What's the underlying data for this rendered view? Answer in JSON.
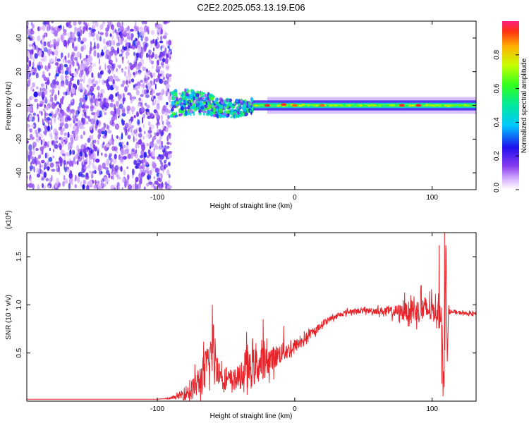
{
  "title": "C2E2.2025.053.13.19.E06",
  "colors": {
    "snr_line": "#e8242a",
    "spectrogram_weak": "#9a5ce6",
    "spectrogram_strong": "#5a00d8",
    "frame": "#000000"
  },
  "chart_data": [
    {
      "type": "heatmap",
      "title": "",
      "xlabel": "Height of straight line (km)",
      "ylabel": "Frequency (Hz)",
      "xlim": [
        -195,
        132
      ],
      "ylim": [
        -50,
        50
      ],
      "x_ticks": [
        "-100",
        "0",
        "100"
      ],
      "x_tick_values": [
        -100,
        0,
        100
      ],
      "y_ticks": [
        "-40",
        "-20",
        "0",
        "20",
        "40"
      ],
      "y_tick_values": [
        -40,
        -20,
        0,
        20,
        40
      ],
      "grid": false,
      "colorbar": {
        "label": "Normalized spectral amplitude",
        "range": [
          0,
          1
        ],
        "ticks": [
          "0.0",
          "0.2",
          "0.4",
          "0.6",
          "0.8"
        ],
        "tick_values": [
          0.0,
          0.2,
          0.4,
          0.6,
          0.8
        ],
        "colormap": "rainbow (magenta-blue-cyan-green-yellow-red)"
      },
      "regions": [
        {
          "x_range": [
            -195,
            -90
          ],
          "frequency_range": [
            -50,
            50
          ],
          "amplitude": 0.15,
          "texture": "random speckle"
        },
        {
          "x_range": [
            -90,
            -30
          ],
          "frequency_range": [
            -8,
            8
          ],
          "amplitude": 0.45,
          "texture": "scattered band"
        },
        {
          "x_range": [
            -30,
            132
          ],
          "frequency_range": [
            -3,
            3
          ],
          "amplitude": 0.7,
          "texture": "narrow band around 0 Hz"
        }
      ],
      "peaks": [
        {
          "x": -20,
          "frequency": 0,
          "amplitude": 0.95
        },
        {
          "x": -8,
          "frequency": 0.5,
          "amplitude": 0.95
        },
        {
          "x": 0,
          "frequency": 0,
          "amplitude": 0.9
        },
        {
          "x": 20,
          "frequency": 0,
          "amplitude": 0.9
        },
        {
          "x": 78,
          "frequency": 0,
          "amplitude": 0.95
        },
        {
          "x": 90,
          "frequency": 0,
          "amplitude": 0.95
        }
      ]
    },
    {
      "type": "line",
      "title": "",
      "xlabel": "Height of straight line (km)",
      "ylabel": "SNR (10 * v/v)",
      "y_multiplier": "(x10^4)",
      "xlim": [
        -195,
        132
      ],
      "ylim": [
        0,
        1.75
      ],
      "x_ticks": [
        "-100",
        "0",
        "100"
      ],
      "x_tick_values": [
        -100,
        0,
        100
      ],
      "y_ticks": [
        "0.5",
        "1.0",
        "1.5"
      ],
      "y_tick_values": [
        0.5,
        1.0,
        1.5
      ],
      "grid": false,
      "series": [
        {
          "x": [
            -195,
            -180,
            -160,
            -140,
            -120,
            -100,
            -90,
            -85,
            -80,
            -75,
            -70,
            -65,
            -62,
            -60,
            -58,
            -55,
            -50,
            -45,
            -40,
            -35,
            -30,
            -25,
            -20,
            -15,
            -10,
            -5,
            0,
            5,
            10,
            15,
            20,
            25,
            30,
            35,
            40,
            50,
            60,
            70,
            80,
            90,
            95,
            100,
            105,
            107,
            108,
            109,
            110,
            111,
            112,
            115,
            120,
            125,
            132
          ],
          "y": [
            0.02,
            0.02,
            0.02,
            0.02,
            0.02,
            0.02,
            0.03,
            0.05,
            0.08,
            0.12,
            0.2,
            0.3,
            0.45,
            0.5,
            0.42,
            0.3,
            0.22,
            0.22,
            0.25,
            0.3,
            0.35,
            0.38,
            0.42,
            0.45,
            0.5,
            0.52,
            0.57,
            0.62,
            0.68,
            0.73,
            0.8,
            0.85,
            0.88,
            0.91,
            0.93,
            0.94,
            0.94,
            0.93,
            0.93,
            0.94,
            0.95,
            0.94,
            0.93,
            0.9,
            0.35,
            0.1,
            1.75,
            0.4,
            0.95,
            0.92,
            0.92,
            0.91,
            0.91
          ],
          "noise": [
            0,
            0,
            0,
            0,
            0,
            0,
            0.01,
            0.03,
            0.08,
            0.12,
            0.18,
            0.25,
            0.25,
            0.25,
            0.22,
            0.15,
            0.12,
            0.12,
            0.14,
            0.18,
            0.22,
            0.2,
            0.16,
            0.14,
            0.12,
            0.1,
            0.08,
            0.06,
            0.05,
            0.04,
            0.04,
            0.03,
            0.03,
            0.03,
            0.03,
            0.03,
            0.04,
            0.06,
            0.1,
            0.14,
            0.16,
            0.14,
            0.12,
            0.1,
            0,
            0,
            0,
            0,
            0.03,
            0.02,
            0.02,
            0.02,
            0.02
          ],
          "spikes": [
            {
              "x": -60,
              "y": 1.0
            },
            {
              "x": -58,
              "y": 0.65
            },
            {
              "x": -35,
              "y": 0.72
            },
            {
              "x": -23,
              "y": 0.85
            },
            {
              "x": -8,
              "y": 0.78
            },
            {
              "x": 80,
              "y": 1.13
            },
            {
              "x": 85,
              "y": 1.05
            },
            {
              "x": 92,
              "y": 1.2
            },
            {
              "x": 105,
              "y": 1.62
            },
            {
              "x": 107,
              "y": 0.18
            },
            {
              "x": 108,
              "y": 0.05
            },
            {
              "x": 109,
              "y": 1.75
            }
          ]
        }
      ]
    }
  ]
}
